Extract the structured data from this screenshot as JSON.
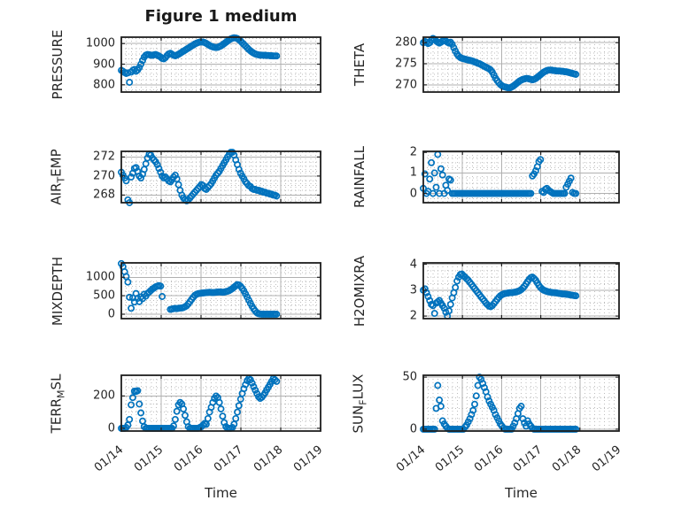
{
  "chart_data": {
    "type": "scatter",
    "marker": "o",
    "marker_color": "#0072BD",
    "xlabel": "Time",
    "xlim": [
      0,
      5
    ],
    "xticks": [
      0,
      1,
      2,
      3,
      4,
      5
    ],
    "xtick_labels": [
      "01/14",
      "01/15",
      "01/16",
      "01/17",
      "01/18",
      "01/19"
    ],
    "xtick_rotation_deg": 40,
    "x_minor_step": 0.125,
    "x": [
      0,
      0.041,
      0.082,
      0.123,
      0.164,
      0.205,
      0.246,
      0.287,
      0.328,
      0.369,
      0.41,
      0.451,
      0.492,
      0.533,
      0.574,
      0.615,
      0.656,
      0.697,
      0.738,
      0.779,
      0.82,
      0.861,
      0.902,
      0.943,
      0.984,
      1.025,
      1.066,
      1.107,
      1.148,
      1.189,
      1.23,
      1.271,
      1.312,
      1.353,
      1.394,
      1.435,
      1.476,
      1.517,
      1.558,
      1.599,
      1.64,
      1.681,
      1.722,
      1.763,
      1.804,
      1.845,
      1.886,
      1.927,
      1.968,
      2.009,
      2.05,
      2.091,
      2.132,
      2.173,
      2.214,
      2.255,
      2.296,
      2.337,
      2.378,
      2.419,
      2.46,
      2.501,
      2.542,
      2.583,
      2.624,
      2.665,
      2.706,
      2.747,
      2.788,
      2.829,
      2.87,
      2.911,
      2.952,
      2.993,
      3.034,
      3.075,
      3.116,
      3.157,
      3.198,
      3.239,
      3.28,
      3.321,
      3.362,
      3.403,
      3.444,
      3.485,
      3.526,
      3.567,
      3.608,
      3.649,
      3.69,
      3.731,
      3.772,
      3.813,
      3.854,
      3.895
    ],
    "subplots": [
      {
        "name": "PRESSURE",
        "title": "Figure 1 medium",
        "ylabel": [
          {
            "t": "PRESSURE"
          }
        ],
        "ylim": [
          765,
          1031
        ],
        "yticks": [
          800,
          900,
          1000
        ],
        "y_minor_step": 25,
        "y": [
          870,
          866,
          860,
          855,
          858,
          812,
          862,
          870,
          875,
          866,
          872,
          884,
          900,
          918,
          934,
          944,
          947,
          946,
          944,
          943,
          945,
          947,
          944,
          940,
          935,
          928,
          926,
          932,
          942,
          950,
          953,
          948,
          943,
          941,
          944,
          948,
          953,
          958,
          963,
          968,
          973,
          978,
          983,
          988,
          993,
          998,
          1002,
          1005,
          1007,
          1008,
          1007,
          1005,
          1001,
          996,
          991,
          987,
          984,
          982,
          981,
          982,
          985,
          989,
          994,
          1000,
          1006,
          1012,
          1018,
          1023,
          1026,
          1028,
          1027,
          1024,
          1019,
          1012,
          1004,
          996,
          988,
          980,
          972,
          965,
          959,
          954,
          950,
          947,
          945,
          944,
          944,
          943,
          943,
          942,
          942,
          941,
          941,
          940,
          940,
          940
        ]
      },
      {
        "name": "THETA",
        "ylabel": [
          {
            "t": "THETA"
          }
        ],
        "ylim": [
          268.3,
          281.3
        ],
        "yticks": [
          270,
          275,
          280
        ],
        "y_minor_step": 1.25,
        "y": [
          280.0,
          280.3,
          280.1,
          279.8,
          280.0,
          280.6,
          281.0,
          280.8,
          280.4,
          280.1,
          279.9,
          280.1,
          280.4,
          280.6,
          280.4,
          280.1,
          279.9,
          280.1,
          279.6,
          278.8,
          278.0,
          277.3,
          276.8,
          276.5,
          276.3,
          276.2,
          276.1,
          276.0,
          275.9,
          275.8,
          275.7,
          275.6,
          275.4,
          275.3,
          275.1,
          275.0,
          274.8,
          274.6,
          274.4,
          274.2,
          274.0,
          273.8,
          273.5,
          273.0,
          272.3,
          271.6,
          271.0,
          270.5,
          270.1,
          269.8,
          269.6,
          269.5,
          269.4,
          269.3,
          269.3,
          269.5,
          269.7,
          270.0,
          270.3,
          270.6,
          270.9,
          271.1,
          271.3,
          271.4,
          271.5,
          271.5,
          271.4,
          271.3,
          271.2,
          271.3,
          271.5,
          271.8,
          272.1,
          272.4,
          272.7,
          273.0,
          273.2,
          273.4,
          273.5,
          273.5,
          273.5,
          273.4,
          273.4,
          273.3,
          273.3,
          273.3,
          273.2,
          273.2,
          273.1,
          273.1,
          273.0,
          272.9,
          272.8,
          272.7,
          272.6,
          272.5
        ]
      },
      {
        "name": "AIR_TEMP",
        "ylabel": [
          {
            "t": "AIR"
          },
          {
            "t": "T",
            "sub": true
          },
          {
            "t": "EMP"
          }
        ],
        "ylim": [
          267.2,
          272.6
        ],
        "yticks": [
          268,
          270,
          272
        ],
        "y_minor_step": 0.5,
        "y": [
          270.4,
          270.1,
          269.8,
          269.5,
          267.5,
          267.2,
          269.9,
          270.3,
          270.8,
          270.9,
          270.5,
          270.0,
          269.8,
          270.2,
          270.7,
          271.3,
          271.9,
          272.3,
          272.2,
          271.9,
          271.7,
          271.5,
          271.2,
          270.8,
          270.4,
          270.0,
          269.8,
          269.9,
          269.7,
          269.5,
          269.4,
          269.6,
          269.9,
          270.1,
          269.7,
          269.1,
          268.5,
          268.0,
          267.7,
          267.5,
          267.4,
          267.5,
          267.7,
          267.9,
          268.1,
          268.3,
          268.5,
          268.7,
          268.9,
          269.1,
          269.0,
          268.7,
          268.6,
          268.8,
          269.0,
          269.2,
          269.5,
          269.8,
          270.1,
          270.3,
          270.5,
          270.8,
          271.1,
          271.4,
          271.7,
          272.0,
          272.3,
          272.5,
          272.5,
          272.2,
          271.7,
          271.2,
          270.7,
          270.3,
          270.0,
          269.7,
          269.4,
          269.2,
          269.0,
          268.9,
          268.7,
          268.6,
          268.6,
          268.5,
          268.5,
          268.4,
          268.4,
          268.3,
          268.3,
          268.2,
          268.2,
          268.1,
          268.1,
          268.0,
          268.0,
          267.9
        ]
      },
      {
        "name": "RAINFALL",
        "ylabel": [
          {
            "t": "RAINFALL"
          }
        ],
        "ylim": [
          -0.45,
          2.05
        ],
        "yticks": [
          0,
          1,
          2
        ],
        "y_minor_step": 0.25,
        "y": [
          0.25,
          0.95,
          0,
          0.1,
          0.7,
          1.5,
          0,
          1.0,
          0.3,
          1.9,
          0,
          1.2,
          0.9,
          0,
          0.4,
          0.15,
          0.7,
          0.65,
          0,
          0,
          0,
          0,
          0,
          0,
          0,
          0,
          0,
          0,
          0,
          0,
          0,
          0,
          0,
          0,
          0,
          0,
          0,
          0,
          0,
          0,
          0,
          0,
          0,
          0,
          0,
          0,
          0,
          0,
          0,
          0,
          0,
          0,
          0,
          0,
          0,
          0,
          0,
          0,
          0,
          0,
          0,
          0,
          0,
          0,
          0,
          0,
          0,
          0,
          0.85,
          0.95,
          1.1,
          1.3,
          1.55,
          1.65,
          0.1,
          0.05,
          0.2,
          0.25,
          0.15,
          0.1,
          0.05,
          0,
          0,
          0,
          0,
          0,
          0,
          0,
          0,
          0.3,
          0.45,
          0.6,
          0.75,
          0.05,
          0,
          0
        ]
      },
      {
        "name": "MIXDEPTH",
        "ylabel": [
          {
            "t": "MIXDEPTH"
          }
        ],
        "ylim": [
          -120,
          1390
        ],
        "yticks": [
          0,
          500,
          1000
        ],
        "y_minor_step": 125,
        "y": [
          1370,
          1290,
          1150,
          1020,
          870,
          460,
          160,
          440,
          330,
          560,
          430,
          340,
          470,
          420,
          540,
          490,
          560,
          600,
          640,
          680,
          710,
          740,
          760,
          775,
          760,
          480,
          null,
          null,
          null,
          null,
          130,
          140,
          150,
          155,
          150,
          160,
          165,
          170,
          180,
          200,
          230,
          280,
          340,
          400,
          460,
          510,
          540,
          555,
          565,
          570,
          575,
          580,
          585,
          590,
          595,
          590,
          585,
          590,
          595,
          600,
          605,
          600,
          595,
          600,
          610,
          620,
          640,
          665,
          695,
          730,
          770,
          800,
          790,
          755,
          700,
          630,
          550,
          465,
          380,
          295,
          215,
          145,
          85,
          40,
          15,
          5,
          0,
          0,
          0,
          0,
          0,
          0,
          0,
          0,
          0,
          0
        ]
      },
      {
        "name": "H2OMIXRA",
        "ylabel": [
          {
            "t": "H2OMIXRA"
          }
        ],
        "ylim": [
          1.9,
          4.05
        ],
        "yticks": [
          2,
          3,
          4
        ],
        "y_minor_step": 0.25,
        "y": [
          3.0,
          3.05,
          2.9,
          2.75,
          2.6,
          2.45,
          2.4,
          2.1,
          2.5,
          2.55,
          2.6,
          2.5,
          2.4,
          2.3,
          2.15,
          2.0,
          2.2,
          2.45,
          2.7,
          2.9,
          3.1,
          3.35,
          3.5,
          3.6,
          3.62,
          3.56,
          3.5,
          3.44,
          3.38,
          3.3,
          3.22,
          3.14,
          3.06,
          2.98,
          2.9,
          2.82,
          2.74,
          2.66,
          2.58,
          2.5,
          2.44,
          2.38,
          2.36,
          2.4,
          2.48,
          2.56,
          2.64,
          2.72,
          2.78,
          2.82,
          2.85,
          2.87,
          2.88,
          2.89,
          2.9,
          2.9,
          2.91,
          2.92,
          2.93,
          2.95,
          2.98,
          3.02,
          3.08,
          3.15,
          3.24,
          3.33,
          3.42,
          3.48,
          3.5,
          3.45,
          3.38,
          3.28,
          3.18,
          3.1,
          3.04,
          3.0,
          2.97,
          2.95,
          2.93,
          2.92,
          2.91,
          2.9,
          2.9,
          2.89,
          2.88,
          2.87,
          2.86,
          2.85,
          2.85,
          2.84,
          2.83,
          2.82,
          2.81,
          2.8,
          2.79,
          2.78
        ]
      },
      {
        "name": "TERR_MSL",
        "ylabel": [
          {
            "t": "TERR"
          },
          {
            "t": "M",
            "sub": true
          },
          {
            "t": "SL"
          }
        ],
        "ylim": [
          -17,
          328
        ],
        "yticks": [
          0,
          200
        ],
        "y_minor_step": 50,
        "show_x": true,
        "y": [
          0,
          0,
          0,
          5,
          20,
          55,
          145,
          190,
          230,
          228,
          232,
          150,
          95,
          45,
          10,
          0,
          0,
          0,
          0,
          0,
          0,
          0,
          0,
          0,
          0,
          0,
          0,
          0,
          0,
          0,
          0,
          0,
          15,
          55,
          105,
          145,
          160,
          150,
          120,
          80,
          40,
          10,
          0,
          0,
          0,
          0,
          0,
          0,
          5,
          10,
          20,
          30,
          25,
          60,
          100,
          130,
          160,
          185,
          200,
          190,
          160,
          120,
          75,
          35,
          10,
          0,
          0,
          0,
          5,
          25,
          60,
          100,
          140,
          180,
          215,
          245,
          270,
          295,
          308,
          300,
          280,
          258,
          236,
          215,
          195,
          185,
          192,
          205,
          220,
          238,
          255,
          272,
          290,
          308,
          300,
          290
        ]
      },
      {
        "name": "SUN_FLUX",
        "ylabel": [
          {
            "t": "SUN"
          },
          {
            "t": "F",
            "sub": true
          },
          {
            "t": "LUX"
          }
        ],
        "ylim": [
          -1.8,
          51.8
        ],
        "yticks": [
          0,
          50
        ],
        "y_minor_step": 10,
        "show_x": true,
        "y": [
          0,
          0,
          0,
          0,
          0,
          0,
          0,
          0,
          20,
          42,
          28,
          22,
          8,
          5,
          3,
          1,
          0,
          0,
          0,
          0,
          0,
          0,
          0,
          0,
          0,
          0,
          2,
          4,
          7,
          10,
          14,
          18,
          24,
          32,
          42,
          50,
          48,
          44,
          40,
          36,
          31,
          27,
          24,
          21,
          18,
          14,
          11,
          8,
          5,
          3,
          1,
          0,
          0,
          0,
          0,
          0,
          3,
          6,
          10,
          15,
          20,
          22,
          10,
          6,
          3,
          8,
          5,
          3,
          1,
          0,
          0,
          0,
          0,
          0,
          0,
          0,
          0,
          0,
          0,
          0,
          0,
          0,
          0,
          0,
          0,
          0,
          0,
          0,
          0,
          0,
          0,
          0,
          0,
          0,
          0,
          0
        ]
      }
    ]
  }
}
